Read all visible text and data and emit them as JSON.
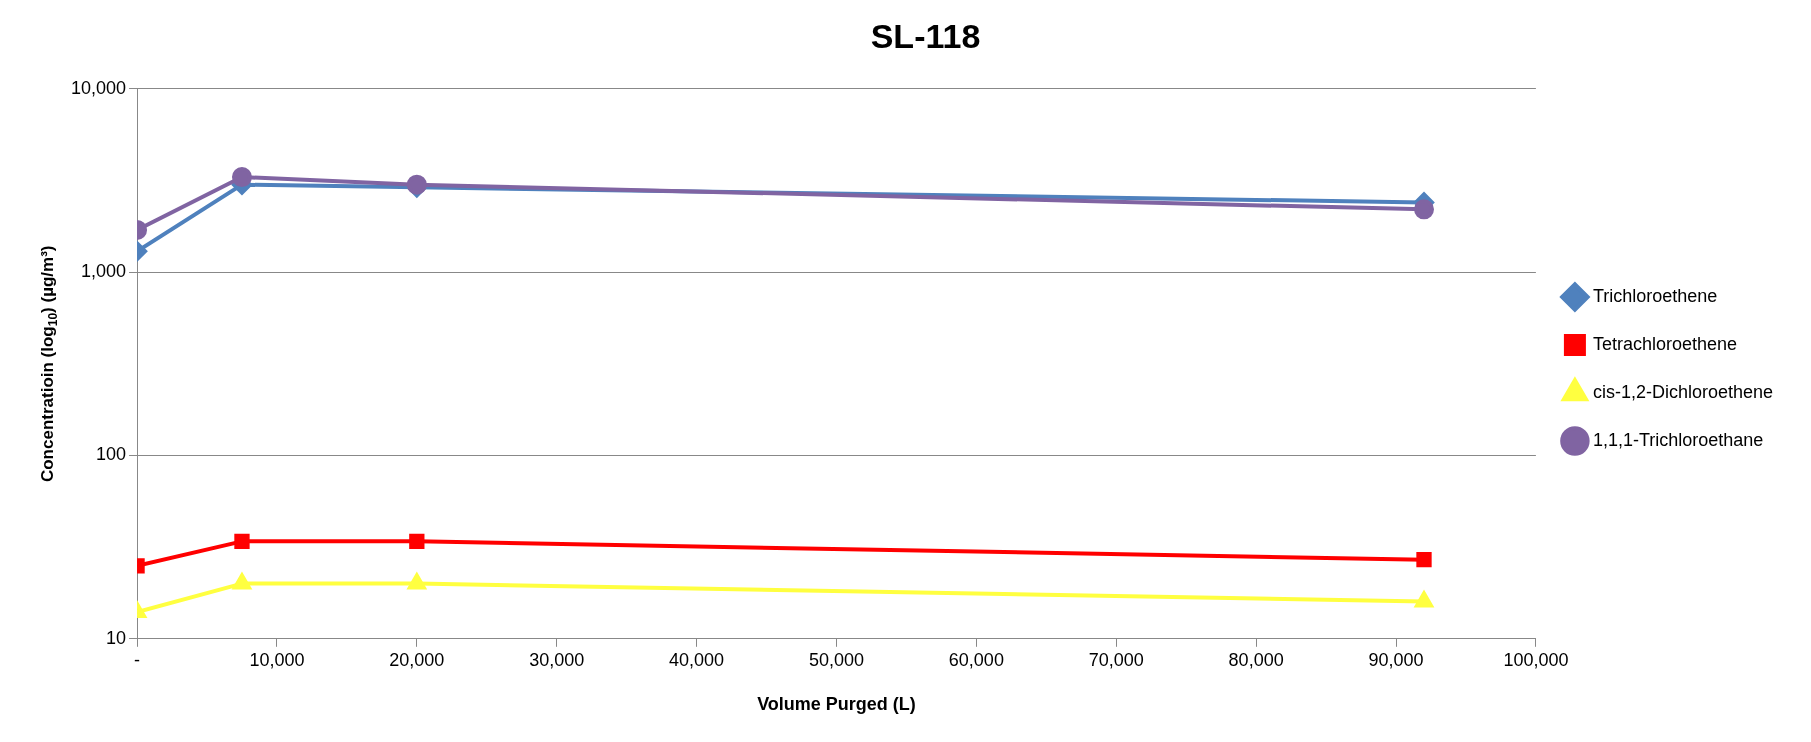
{
  "chart_data": {
    "type": "line",
    "title": "SL-118",
    "xlabel": "Volume Purged (L)",
    "ylabel": "Concentratioin (log$_{10}$) (µg/m³)",
    "x": [
      0,
      7500,
      20000,
      92000
    ],
    "xlim": [
      0,
      100000
    ],
    "xticks": [
      {
        "value": 0,
        "label": "-"
      },
      {
        "value": 10000,
        "label": "10,000"
      },
      {
        "value": 20000,
        "label": "20,000"
      },
      {
        "value": 30000,
        "label": "30,000"
      },
      {
        "value": 40000,
        "label": "40,000"
      },
      {
        "value": 50000,
        "label": "50,000"
      },
      {
        "value": 60000,
        "label": "60,000"
      },
      {
        "value": 70000,
        "label": "70,000"
      },
      {
        "value": 80000,
        "label": "80,000"
      },
      {
        "value": 90000,
        "label": "90,000"
      },
      {
        "value": 100000,
        "label": "100,000"
      }
    ],
    "ylim": [
      10,
      10000
    ],
    "yticks": [
      10,
      100,
      {
        "value": 1000,
        "label": "1,000"
      },
      {
        "value": 10000,
        "label": "10,000"
      }
    ],
    "log": "y",
    "grid": "y",
    "legend": "right",
    "series": [
      {
        "name": "Trichloroethene",
        "color": "#4f81bd",
        "marker": "diamond",
        "values": [
          1300,
          3000,
          2900,
          2400
        ]
      },
      {
        "name": "Tetrachloroethene",
        "color": "#ff0000",
        "marker": "square",
        "values": [
          25,
          34,
          34,
          27
        ]
      },
      {
        "name": "cis-1,2-Dichloroethene",
        "color": "#ffff40",
        "marker": "triangle",
        "values": [
          14,
          20,
          20,
          16
        ]
      },
      {
        "name": "1,1,1-Trichloroethane",
        "color": "#8064a2",
        "marker": "circle",
        "values": [
          1700,
          3300,
          3000,
          2200
        ]
      }
    ]
  }
}
